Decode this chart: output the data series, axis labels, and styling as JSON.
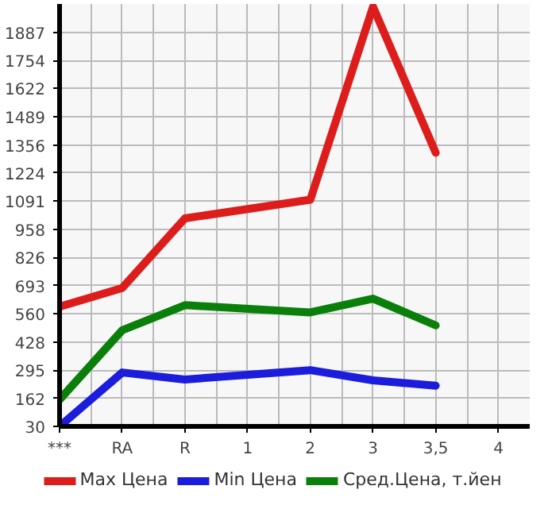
{
  "chart_data": {
    "type": "line",
    "categories": [
      "***",
      "RA",
      "R",
      "1",
      "2",
      "3",
      "3,5",
      "4"
    ],
    "series": [
      {
        "name": "Max Цена",
        "color": "#dd1c1c",
        "values": [
          594,
          682,
          1010,
          null,
          1098,
          2007,
          1319,
          null
        ]
      },
      {
        "name": "Min Цена",
        "color": "#1c1cdd",
        "values": [
          30,
          284,
          251,
          null,
          295,
          247,
          222,
          null
        ]
      },
      {
        "name": "Сред.Цена, т.йен",
        "color": "#0a800a",
        "values": [
          156,
          483,
          601,
          null,
          567,
          632,
          506,
          null
        ]
      }
    ],
    "ylim": [
      30,
      2020
    ],
    "yticks": [
      30,
      162,
      295,
      428,
      560,
      693,
      826,
      958,
      1091,
      1224,
      1356,
      1489,
      1622,
      1754,
      1887
    ],
    "grid": true,
    "legend": "bottom"
  }
}
